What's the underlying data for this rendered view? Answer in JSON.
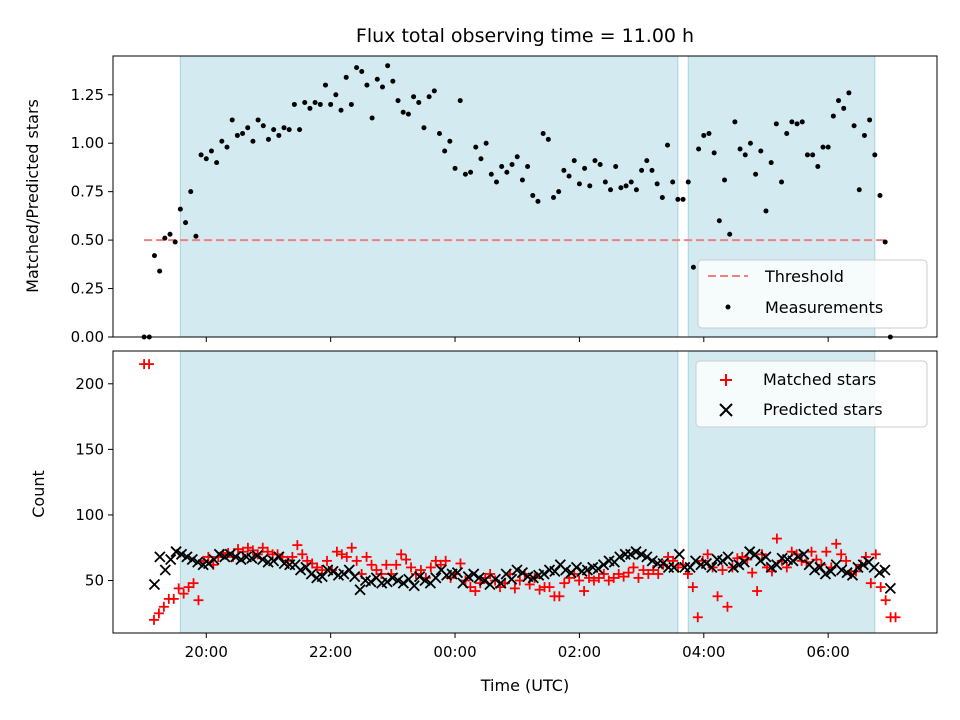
{
  "chart_data": [
    {
      "type": "scatter",
      "title": "Flux total observing time = 11.00 h",
      "xlabel": "",
      "ylabel": "Matched/Predicted stars",
      "x_unit": "hours (19:00 = 0)",
      "xlim": [
        "18:30",
        "07:45"
      ],
      "ylim": [
        0,
        1.45
      ],
      "yticks": [
        "0.00",
        "0.25",
        "0.50",
        "0.75",
        "1.00",
        "1.25"
      ],
      "xticks": [
        "20:00",
        "22:00",
        "00:00",
        "02:00",
        "04:00",
        "06:00"
      ],
      "shaded_intervals": [
        [
          "19:35",
          "03:35"
        ],
        [
          "03:45",
          "06:45"
        ]
      ],
      "shade_color": "#d3eaf0",
      "legend": {
        "position": "lower-right",
        "entries": [
          "Threshold",
          "Measurements"
        ]
      },
      "threshold": {
        "name": "Threshold",
        "y": 0.5,
        "x_range": [
          "19:00",
          "06:55"
        ],
        "color": "#f08080"
      },
      "series": [
        {
          "name": "Measurements",
          "color": "#000000",
          "marker": "dot",
          "points": [
            [
              "19:00",
              0.0
            ],
            [
              "19:05",
              0.0
            ],
            [
              "19:10",
              0.42
            ],
            [
              "19:15",
              0.34
            ],
            [
              "19:20",
              0.51
            ],
            [
              "19:25",
              0.53
            ],
            [
              "19:30",
              0.49
            ],
            [
              "19:35",
              0.66
            ],
            [
              "19:40",
              0.59
            ],
            [
              "19:45",
              0.75
            ],
            [
              "19:50",
              0.52
            ],
            [
              "19:55",
              0.94
            ],
            [
              "20:00",
              0.92
            ],
            [
              "20:05",
              0.96
            ],
            [
              "20:10",
              0.9
            ],
            [
              "20:15",
              1.01
            ],
            [
              "20:20",
              0.98
            ],
            [
              "20:25",
              1.12
            ],
            [
              "20:30",
              1.04
            ],
            [
              "20:35",
              1.05
            ],
            [
              "20:40",
              1.08
            ],
            [
              "20:45",
              1.01
            ],
            [
              "20:50",
              1.12
            ],
            [
              "20:55",
              1.09
            ],
            [
              "21:00",
              1.02
            ],
            [
              "21:05",
              1.07
            ],
            [
              "21:10",
              1.04
            ],
            [
              "21:15",
              1.08
            ],
            [
              "21:20",
              1.07
            ],
            [
              "21:25",
              1.2
            ],
            [
              "21:30",
              1.07
            ],
            [
              "21:35",
              1.21
            ],
            [
              "21:40",
              1.18
            ],
            [
              "21:45",
              1.21
            ],
            [
              "21:50",
              1.2
            ],
            [
              "21:55",
              1.3
            ],
            [
              "22:00",
              1.2
            ],
            [
              "22:05",
              1.25
            ],
            [
              "22:10",
              1.17
            ],
            [
              "22:15",
              1.34
            ],
            [
              "22:20",
              1.2
            ],
            [
              "22:25",
              1.39
            ],
            [
              "22:30",
              1.37
            ],
            [
              "22:35",
              1.3
            ],
            [
              "22:40",
              1.13
            ],
            [
              "22:45",
              1.33
            ],
            [
              "22:50",
              1.29
            ],
            [
              "22:55",
              1.4
            ],
            [
              "23:00",
              1.32
            ],
            [
              "23:05",
              1.22
            ],
            [
              "23:10",
              1.16
            ],
            [
              "23:15",
              1.15
            ],
            [
              "23:20",
              1.24
            ],
            [
              "23:25",
              1.21
            ],
            [
              "23:30",
              1.08
            ],
            [
              "23:35",
              1.24
            ],
            [
              "23:40",
              1.27
            ],
            [
              "23:45",
              1.05
            ],
            [
              "23:50",
              0.96
            ],
            [
              "23:55",
              1.01
            ],
            [
              "00:00",
              0.87
            ],
            [
              "00:05",
              1.22
            ],
            [
              "00:10",
              0.84
            ],
            [
              "00:15",
              0.85
            ],
            [
              "00:20",
              0.98
            ],
            [
              "00:25",
              0.92
            ],
            [
              "00:30",
              1.0
            ],
            [
              "00:35",
              0.84
            ],
            [
              "00:40",
              0.8
            ],
            [
              "00:45",
              0.88
            ],
            [
              "00:50",
              0.85
            ],
            [
              "00:55",
              0.89
            ],
            [
              "01:00",
              0.93
            ],
            [
              "01:05",
              0.81
            ],
            [
              "01:10",
              0.88
            ],
            [
              "01:15",
              0.73
            ],
            [
              "01:20",
              0.7
            ],
            [
              "01:25",
              1.05
            ],
            [
              "01:30",
              1.02
            ],
            [
              "01:35",
              0.72
            ],
            [
              "01:40",
              0.75
            ],
            [
              "01:45",
              0.86
            ],
            [
              "01:50",
              0.83
            ],
            [
              "01:55",
              0.91
            ],
            [
              "02:00",
              0.79
            ],
            [
              "02:05",
              0.87
            ],
            [
              "02:10",
              0.78
            ],
            [
              "02:15",
              0.91
            ],
            [
              "02:20",
              0.89
            ],
            [
              "02:25",
              0.8
            ],
            [
              "02:30",
              0.76
            ],
            [
              "02:35",
              0.88
            ],
            [
              "02:40",
              0.77
            ],
            [
              "02:45",
              0.78
            ],
            [
              "02:50",
              0.8
            ],
            [
              "02:55",
              0.76
            ],
            [
              "03:00",
              0.86
            ],
            [
              "03:05",
              0.91
            ],
            [
              "03:10",
              0.86
            ],
            [
              "03:15",
              0.79
            ],
            [
              "03:20",
              0.72
            ],
            [
              "03:25",
              0.99
            ],
            [
              "03:30",
              0.8
            ],
            [
              "03:35",
              0.71
            ],
            [
              "03:40",
              0.71
            ],
            [
              "03:45",
              0.8
            ],
            [
              "03:50",
              0.36
            ],
            [
              "03:55",
              0.97
            ],
            [
              "04:00",
              1.04
            ],
            [
              "04:05",
              1.05
            ],
            [
              "04:10",
              0.95
            ],
            [
              "04:15",
              0.6
            ],
            [
              "04:20",
              0.81
            ],
            [
              "04:25",
              0.53
            ],
            [
              "04:30",
              1.11
            ],
            [
              "04:35",
              0.97
            ],
            [
              "04:40",
              0.94
            ],
            [
              "04:45",
              1.0
            ],
            [
              "04:50",
              0.84
            ],
            [
              "04:55",
              0.96
            ],
            [
              "05:00",
              0.65
            ],
            [
              "05:05",
              0.9
            ],
            [
              "05:10",
              1.1
            ],
            [
              "05:15",
              0.8
            ],
            [
              "05:20",
              1.05
            ],
            [
              "05:25",
              1.11
            ],
            [
              "05:30",
              1.1
            ],
            [
              "05:35",
              1.11
            ],
            [
              "05:40",
              0.94
            ],
            [
              "05:45",
              0.94
            ],
            [
              "05:50",
              0.88
            ],
            [
              "05:55",
              0.98
            ],
            [
              "06:00",
              0.98
            ],
            [
              "06:05",
              1.14
            ],
            [
              "06:10",
              1.22
            ],
            [
              "06:15",
              1.18
            ],
            [
              "06:20",
              1.26
            ],
            [
              "06:25",
              1.09
            ],
            [
              "06:30",
              0.76
            ],
            [
              "06:35",
              1.04
            ],
            [
              "06:40",
              1.12
            ],
            [
              "06:45",
              0.94
            ],
            [
              "06:50",
              0.73
            ],
            [
              "06:55",
              0.49
            ],
            [
              "07:00",
              0.0
            ]
          ]
        }
      ]
    },
    {
      "type": "scatter",
      "title": "",
      "xlabel": "Time (UTC)",
      "ylabel": "Count",
      "xlim": [
        "18:30",
        "07:45"
      ],
      "ylim": [
        10,
        225
      ],
      "yticks": [
        "50",
        "100",
        "150",
        "200"
      ],
      "xticks": [
        "20:00",
        "22:00",
        "00:00",
        "02:00",
        "04:00",
        "06:00"
      ],
      "shaded_intervals": [
        [
          "19:35",
          "03:35"
        ],
        [
          "03:45",
          "06:45"
        ]
      ],
      "legend": {
        "position": "upper-right",
        "entries": [
          "Matched stars",
          "Predicted stars"
        ]
      },
      "series": [
        {
          "name": "Matched stars",
          "color": "#ff0000",
          "marker": "plus",
          "values": [
            215,
            215,
            20,
            25,
            30,
            36,
            36,
            44,
            40,
            45,
            48,
            35,
            65,
            68,
            62,
            68,
            70,
            71,
            68,
            74,
            72,
            75,
            73,
            70,
            75,
            72,
            70,
            70,
            68,
            65,
            68,
            77,
            70,
            65,
            63,
            60,
            58,
            65,
            58,
            72,
            70,
            68,
            75,
            65,
            55,
            68,
            62,
            58,
            55,
            62,
            55,
            62,
            70,
            66,
            60,
            55,
            58,
            52,
            60,
            65,
            62,
            65,
            52,
            55,
            63,
            50,
            45,
            42,
            48,
            52,
            55,
            50,
            45,
            48,
            55,
            44,
            50,
            55,
            47,
            52,
            43,
            45,
            45,
            38,
            38,
            48,
            52,
            55,
            50,
            42,
            52,
            50,
            52,
            55,
            50,
            52,
            55,
            53,
            56,
            60,
            52,
            58,
            55,
            58,
            55,
            62,
            68,
            65,
            60,
            62,
            55,
            45,
            22,
            65,
            70,
            60,
            38,
            58,
            30,
            60,
            67,
            68,
            66,
            56,
            42,
            70,
            60,
            57,
            82,
            65,
            60,
            72,
            70,
            65,
            64,
            72,
            66,
            62,
            72,
            60,
            78,
            70,
            65,
            55,
            57,
            62,
            68,
            48,
            70,
            45,
            35,
            22,
            22
          ]
        },
        {
          "name": "Predicted stars",
          "color": "#000000",
          "marker": "x",
          "values": [
            47,
            68,
            58,
            66,
            72,
            70,
            68,
            66,
            64,
            62,
            63,
            66,
            70,
            68,
            70,
            68,
            66,
            68,
            67,
            69,
            66,
            64,
            65,
            68,
            63,
            62,
            62,
            58,
            60,
            55,
            52,
            53,
            58,
            57,
            54,
            55,
            58,
            53,
            43,
            50,
            49,
            52,
            48,
            49,
            52,
            50,
            48,
            51,
            46,
            53,
            50,
            48,
            52,
            58,
            54,
            55,
            56,
            48,
            53,
            55,
            52,
            50,
            47,
            51,
            48,
            55,
            51,
            58,
            56,
            53,
            52,
            54,
            55,
            58,
            57,
            62,
            58,
            56,
            60,
            57,
            58,
            60,
            59,
            62,
            65,
            64,
            68,
            70,
            70,
            72,
            70,
            68,
            65,
            63,
            63,
            60,
            60,
            70,
            60,
            60,
            65,
            62,
            63,
            60,
            66,
            65,
            68,
            60,
            62,
            64,
            72,
            70,
            65,
            68,
            60,
            62,
            67,
            66,
            65,
            68,
            70,
            62,
            58,
            60,
            55,
            57,
            62,
            58,
            56,
            54,
            60,
            62,
            64,
            60,
            56,
            58,
            44
          ]
        }
      ]
    }
  ]
}
